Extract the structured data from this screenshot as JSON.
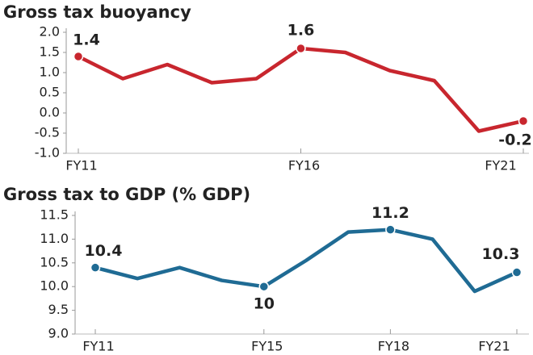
{
  "chart_data": [
    {
      "type": "line",
      "title": "Gross tax buoyancy",
      "categories": [
        "FY11",
        null,
        null,
        null,
        null,
        "FY16",
        null,
        null,
        null,
        null,
        "FY21"
      ],
      "series": [
        {
          "name": "Gross tax buoyancy",
          "color": "#c8262e",
          "values": [
            1.4,
            0.85,
            1.2,
            0.75,
            0.85,
            1.6,
            1.5,
            1.05,
            0.8,
            -0.45,
            -0.2
          ],
          "value_labels": [
            "1.4",
            null,
            null,
            null,
            null,
            "1.6",
            null,
            null,
            null,
            null,
            "-0.2"
          ]
        }
      ],
      "ylim": [
        -1,
        2
      ],
      "yticks": [
        {
          "value": -1,
          "label": "-1.0"
        },
        -0.5,
        {
          "value": 0,
          "label": "0.0"
        },
        0.5,
        {
          "value": 1,
          "label": "1.0"
        },
        1.5,
        {
          "value": 2,
          "label": "2.0"
        }
      ]
    },
    {
      "type": "line",
      "title": "Gross tax to GDP (% GDP)",
      "categories": [
        "FY11",
        null,
        null,
        null,
        "FY15",
        null,
        null,
        "FY18",
        null,
        null,
        "FY21"
      ],
      "series": [
        {
          "name": "Gross tax to GDP",
          "color": "#1f6b94",
          "values": [
            10.4,
            10.17,
            10.4,
            10.13,
            10,
            10.55,
            11.15,
            11.2,
            11,
            9.9,
            10.3
          ],
          "value_labels": [
            "10.4",
            null,
            null,
            null,
            "10",
            null,
            null,
            "11.2",
            null,
            null,
            "10.3"
          ]
        }
      ],
      "ylim": [
        9,
        11.5
      ],
      "yticks": [
        {
          "value": 9,
          "label": "9.0"
        },
        9.5,
        {
          "value": 10,
          "label": "10.0"
        },
        10.5,
        {
          "value": 11,
          "label": "11.0"
        },
        11.5
      ]
    }
  ]
}
